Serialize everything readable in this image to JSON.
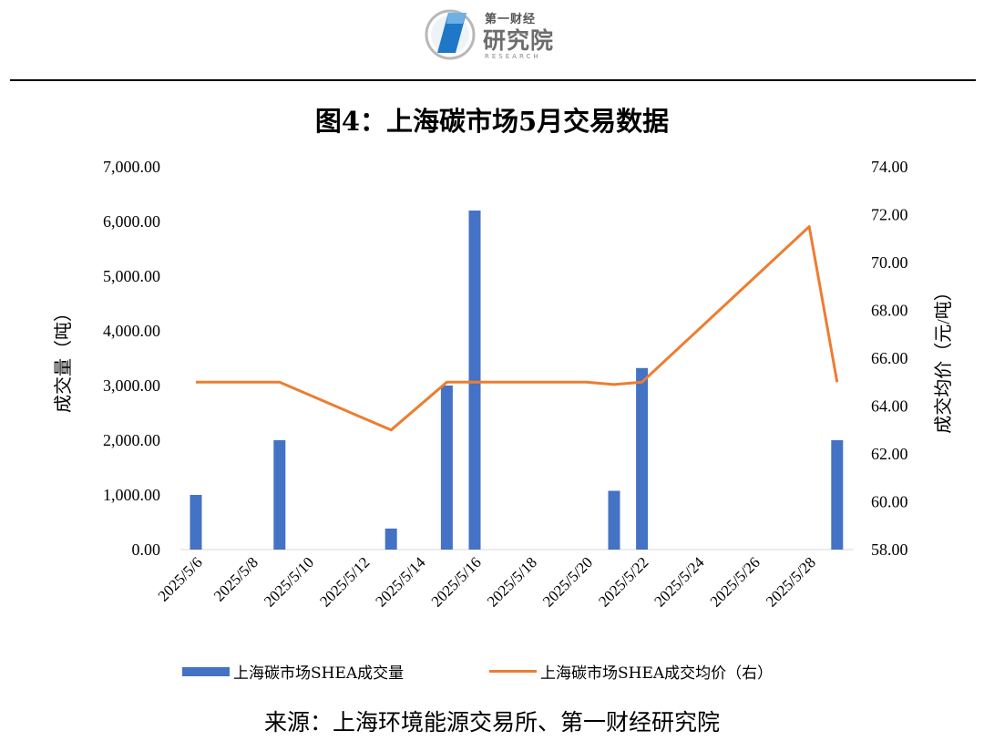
{
  "logo": {
    "top_text": "第一财经",
    "main_text": "研究院",
    "sub_text": "RESEARCH"
  },
  "title": "图4：上海碳市场5月交易数据",
  "source": "来源：上海环境能源交易所、第一财经研究院",
  "colors": {
    "bar": "#4472C4",
    "line": "#ED7D31",
    "axis": "#d9d9d9"
  },
  "chart_data": {
    "type": "bar",
    "title": "图4：上海碳市场5月交易数据",
    "x": [
      "2025/5/6",
      "2025/5/7",
      "2025/5/8",
      "2025/5/9",
      "2025/5/10",
      "2025/5/11",
      "2025/5/12",
      "2025/5/13",
      "2025/5/14",
      "2025/5/15",
      "2025/5/16",
      "2025/5/17",
      "2025/5/18",
      "2025/5/19",
      "2025/5/20",
      "2025/5/21",
      "2025/5/22",
      "2025/5/23",
      "2025/5/24",
      "2025/5/25",
      "2025/5/26",
      "2025/5/27",
      "2025/5/28",
      "2025/5/29"
    ],
    "xticks": [
      "2025/5/6",
      "2025/5/8",
      "2025/5/10",
      "2025/5/12",
      "2025/5/14",
      "2025/5/16",
      "2025/5/18",
      "2025/5/20",
      "2025/5/22",
      "2025/5/24",
      "2025/5/26",
      "2025/5/28"
    ],
    "series": [
      {
        "name": "上海碳市场SHEA成交量",
        "type": "bar",
        "axis": "left",
        "points": [
          {
            "x": "2025/5/6",
            "y": 1000
          },
          {
            "x": "2025/5/9",
            "y": 2000
          },
          {
            "x": "2025/5/13",
            "y": 385
          },
          {
            "x": "2025/5/15",
            "y": 3000
          },
          {
            "x": "2025/5/16",
            "y": 6200
          },
          {
            "x": "2025/5/21",
            "y": 1075
          },
          {
            "x": "2025/5/22",
            "y": 3320
          },
          {
            "x": "2025/5/29",
            "y": 2000
          }
        ]
      },
      {
        "name": "上海碳市场SHEA成交均价（右）",
        "type": "line",
        "axis": "right",
        "points": [
          {
            "x": "2025/5/6",
            "y": 65.0
          },
          {
            "x": "2025/5/9",
            "y": 65.0
          },
          {
            "x": "2025/5/13",
            "y": 63.0
          },
          {
            "x": "2025/5/15",
            "y": 65.0
          },
          {
            "x": "2025/5/16",
            "y": 65.0
          },
          {
            "x": "2025/5/20",
            "y": 65.0
          },
          {
            "x": "2025/5/21",
            "y": 64.9
          },
          {
            "x": "2025/5/22",
            "y": 65.0
          },
          {
            "x": "2025/5/28",
            "y": 71.5
          },
          {
            "x": "2025/5/29",
            "y": 65.0
          }
        ]
      }
    ],
    "ylabel_left": "成交量（吨）",
    "ylabel_right": "成交均价（元/吨）",
    "ylim_left": [
      0,
      7000
    ],
    "ylim_right": [
      58,
      74
    ],
    "yticks_left": [
      "0.00",
      "1,000.00",
      "2,000.00",
      "3,000.00",
      "4,000.00",
      "5,000.00",
      "6,000.00",
      "7,000.00"
    ],
    "yticks_right": [
      "58.00",
      "60.00",
      "62.00",
      "64.00",
      "66.00",
      "68.00",
      "70.00",
      "72.00",
      "74.00"
    ],
    "legend_position": "bottom",
    "grid": false
  }
}
